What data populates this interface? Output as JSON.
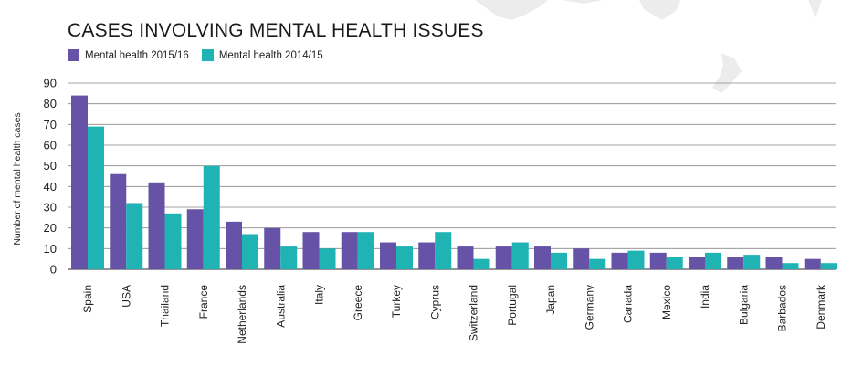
{
  "chart_data": {
    "type": "bar",
    "title": "CASES INVOLVING MENTAL HEALTH ISSUES",
    "ylabel": "Number of mental health cases",
    "xlabel": "",
    "ylim": [
      0,
      90
    ],
    "yticks": [
      0,
      10,
      20,
      30,
      40,
      50,
      60,
      70,
      80,
      90
    ],
    "grid": true,
    "legend_position": "top-left",
    "categories": [
      "Spain",
      "USA",
      "Thailand",
      "France",
      "Netherlands",
      "Australia",
      "Italy",
      "Greece",
      "Turkey",
      "Cyprus",
      "Switzerland",
      "Portugal",
      "Japan",
      "Germany",
      "Canada",
      "Mexico",
      "India",
      "Bulgaria",
      "Barbados",
      "Denmark"
    ],
    "series": [
      {
        "name": "Mental health 2015/16",
        "color": "#6652a6",
        "values": [
          84,
          46,
          42,
          29,
          23,
          20,
          18,
          18,
          13,
          13,
          11,
          11,
          11,
          10,
          8,
          8,
          6,
          6,
          6,
          5
        ]
      },
      {
        "name": "Mental health 2014/15",
        "color": "#1fb3b3",
        "values": [
          69,
          32,
          27,
          50,
          17,
          11,
          10,
          18,
          11,
          18,
          5,
          13,
          8,
          5,
          9,
          6,
          8,
          7,
          3,
          3
        ]
      }
    ]
  }
}
